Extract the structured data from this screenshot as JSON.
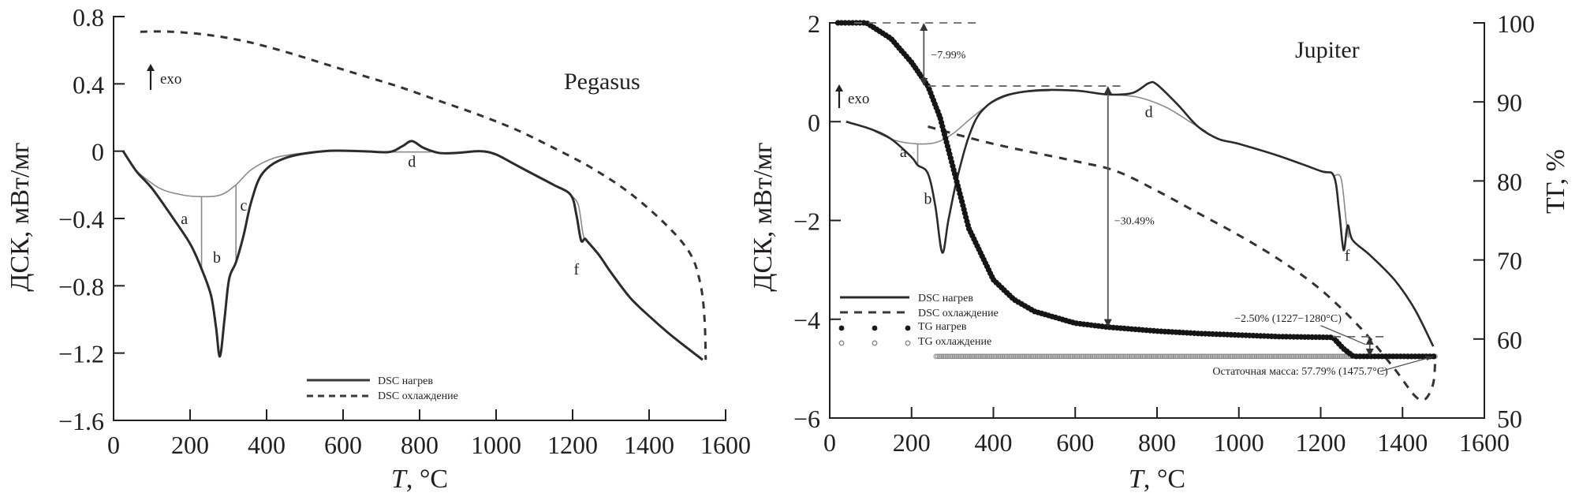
{
  "chart_data": [
    {
      "type": "line",
      "title": "Pegasus",
      "xlabel_italic": "T",
      "xlabel_rest": ", °C",
      "ylabel": "ДСК, мВт/мг",
      "xlim": [
        0,
        1600
      ],
      "ylim": [
        -1.6,
        0.8
      ],
      "xticks": [
        0,
        200,
        400,
        600,
        800,
        1000,
        1200,
        1400,
        1600
      ],
      "yticks": [
        -1.6,
        -1.2,
        -0.8,
        -0.4,
        0,
        0.4,
        0.8
      ],
      "ytick_labels": [
        "−1.6",
        "−1.2",
        "−0.8",
        "−0.4",
        "0",
        "0.4",
        "0.8"
      ],
      "exo_label": "exo",
      "legend": {
        "placement": "bottom-center",
        "entries": [
          "DSC нагрев",
          "DSC охлаждение"
        ]
      },
      "series": [
        {
          "name": "DSC нагрев",
          "style": "solid",
          "points": [
            [
              25,
              0
            ],
            [
              60,
              -0.12
            ],
            [
              100,
              -0.22
            ],
            [
              150,
              -0.38
            ],
            [
              200,
              -0.55
            ],
            [
              230,
              -0.7
            ],
            [
              255,
              -0.86
            ],
            [
              268,
              -1.05
            ],
            [
              278,
              -1.22
            ],
            [
              290,
              -1.0
            ],
            [
              302,
              -0.76
            ],
            [
              320,
              -0.66
            ],
            [
              340,
              -0.5
            ],
            [
              360,
              -0.3
            ],
            [
              390,
              -0.13
            ],
            [
              450,
              -0.04
            ],
            [
              550,
              0
            ],
            [
              650,
              0
            ],
            [
              720,
              -0.005
            ],
            [
              755,
              0.03
            ],
            [
              780,
              0.06
            ],
            [
              810,
              0.02
            ],
            [
              850,
              -0.01
            ],
            [
              900,
              -0.01
            ],
            [
              960,
              0
            ],
            [
              1000,
              -0.02
            ],
            [
              1050,
              -0.08
            ],
            [
              1100,
              -0.14
            ],
            [
              1150,
              -0.2
            ],
            [
              1195,
              -0.26
            ],
            [
              1210,
              -0.38
            ],
            [
              1222,
              -0.53
            ],
            [
              1232,
              -0.52
            ],
            [
              1240,
              -0.54
            ],
            [
              1270,
              -0.62
            ],
            [
              1300,
              -0.72
            ],
            [
              1350,
              -0.87
            ],
            [
              1400,
              -0.98
            ],
            [
              1450,
              -1.08
            ],
            [
              1500,
              -1.17
            ],
            [
              1540,
              -1.24
            ]
          ]
        },
        {
          "name": "DSC охлаждение",
          "style": "dashed",
          "points": [
            [
              70,
              0.71
            ],
            [
              150,
              0.71
            ],
            [
              250,
              0.69
            ],
            [
              350,
              0.65
            ],
            [
              450,
              0.59
            ],
            [
              550,
              0.52
            ],
            [
              650,
              0.45
            ],
            [
              750,
              0.38
            ],
            [
              850,
              0.3
            ],
            [
              950,
              0.22
            ],
            [
              1050,
              0.13
            ],
            [
              1150,
              0.02
            ],
            [
              1250,
              -0.1
            ],
            [
              1350,
              -0.25
            ],
            [
              1450,
              -0.45
            ],
            [
              1510,
              -0.62
            ],
            [
              1535,
              -0.8
            ],
            [
              1545,
              -1.0
            ],
            [
              1548,
              -1.24
            ]
          ]
        }
      ],
      "baselines": [
        {
          "points": [
            [
              60,
              -0.12
            ],
            [
              120,
              -0.22
            ],
            [
              180,
              -0.26
            ],
            [
              230,
              -0.27
            ],
            [
              280,
              -0.26
            ],
            [
              320,
              -0.2
            ],
            [
              360,
              -0.11
            ],
            [
              420,
              -0.04
            ],
            [
              500,
              -0.01
            ],
            [
              550,
              0
            ]
          ]
        },
        {
          "points": [
            [
              720,
              -0.005
            ],
            [
              830,
              -0.005
            ]
          ]
        },
        {
          "points": [
            [
              1195,
              -0.26
            ],
            [
              1215,
              -0.32
            ],
            [
              1228,
              -0.5
            ],
            [
              1240,
              -0.54
            ]
          ]
        }
      ],
      "dividers": [
        [
          230,
          -0.27,
          -0.7
        ],
        [
          320,
          -0.2,
          -0.66
        ]
      ],
      "peak_labels": [
        {
          "text": "a",
          "x": 185,
          "y": -0.4
        },
        {
          "text": "b",
          "x": 270,
          "y": -0.63
        },
        {
          "text": "c",
          "x": 340,
          "y": -0.32
        },
        {
          "text": "d",
          "x": 780,
          "y": -0.06
        },
        {
          "text": "f",
          "x": 1210,
          "y": -0.7
        }
      ]
    },
    {
      "type": "line",
      "title": "Jupiter",
      "xlabel_italic": "T",
      "xlabel_rest": ", °C",
      "ylabel": "ДСК, мВт/мг",
      "ylabel_right": "ТГ, %",
      "xlim": [
        0,
        1600
      ],
      "ylim": [
        -6,
        2
      ],
      "ylim_right": [
        50,
        100
      ],
      "xticks": [
        0,
        200,
        400,
        600,
        800,
        1000,
        1200,
        1400,
        1600
      ],
      "yticks": [
        -6,
        -4,
        -2,
        0,
        2
      ],
      "ytick_labels": [
        "−6",
        "−4",
        "−2",
        "0",
        "2"
      ],
      "yticks_right": [
        50,
        60,
        70,
        80,
        90,
        100
      ],
      "exo_label": "exo",
      "legend": {
        "placement": "lower-left",
        "entries": [
          "DSC нагрев",
          "DSC охлаждение",
          "TG нагрев",
          "TG охлаждение"
        ]
      },
      "series": [
        {
          "name": "DSC нагрев",
          "style": "solid",
          "axis": "left",
          "points": [
            [
              40,
              0
            ],
            [
              100,
              -0.15
            ],
            [
              150,
              -0.35
            ],
            [
              200,
              -0.72
            ],
            [
              215,
              -0.88
            ],
            [
              240,
              -1.05
            ],
            [
              258,
              -1.7
            ],
            [
              275,
              -2.65
            ],
            [
              290,
              -2.0
            ],
            [
              310,
              -1.2
            ],
            [
              340,
              -0.3
            ],
            [
              370,
              0.2
            ],
            [
              420,
              0.5
            ],
            [
              500,
              0.63
            ],
            [
              600,
              0.63
            ],
            [
              680,
              0.55
            ],
            [
              740,
              0.58
            ],
            [
              780,
              0.78
            ],
            [
              800,
              0.75
            ],
            [
              850,
              0.35
            ],
            [
              900,
              -0.1
            ],
            [
              950,
              -0.35
            ],
            [
              1000,
              -0.45
            ],
            [
              1100,
              -0.7
            ],
            [
              1200,
              -1.0
            ],
            [
              1232,
              -1.1
            ],
            [
              1245,
              -1.8
            ],
            [
              1256,
              -2.6
            ],
            [
              1266,
              -2.1
            ],
            [
              1278,
              -2.4
            ],
            [
              1320,
              -2.7
            ],
            [
              1380,
              -3.2
            ],
            [
              1430,
              -3.8
            ],
            [
              1475,
              -4.55
            ]
          ]
        },
        {
          "name": "DSC охлаждение",
          "style": "dashed",
          "axis": "left",
          "points": [
            [
              240,
              -0.1
            ],
            [
              400,
              -0.45
            ],
            [
              600,
              -0.8
            ],
            [
              700,
              -1.0
            ],
            [
              800,
              -1.4
            ],
            [
              900,
              -1.85
            ],
            [
              1000,
              -2.3
            ],
            [
              1100,
              -2.8
            ],
            [
              1200,
              -3.4
            ],
            [
              1300,
              -4.2
            ],
            [
              1380,
              -5.0
            ],
            [
              1430,
              -5.55
            ],
            [
              1455,
              -5.62
            ],
            [
              1475,
              -5.3
            ],
            [
              1480,
              -4.8
            ]
          ]
        },
        {
          "name": "TG нагрев",
          "style": "filled-dots",
          "axis": "right",
          "points": [
            [
              20,
              100
            ],
            [
              90,
              100
            ],
            [
              150,
              98
            ],
            [
              200,
              95
            ],
            [
              240,
              92
            ],
            [
              270,
              88
            ],
            [
              300,
              82
            ],
            [
              340,
              74
            ],
            [
              400,
              67.5
            ],
            [
              450,
              65
            ],
            [
              500,
              63.5
            ],
            [
              600,
              62
            ],
            [
              680,
              61.5
            ],
            [
              800,
              61
            ],
            [
              900,
              60.7
            ],
            [
              1000,
              60.5
            ],
            [
              1100,
              60.3
            ],
            [
              1230,
              60.2
            ],
            [
              1255,
              58.8
            ],
            [
              1280,
              57.8
            ],
            [
              1400,
              57.8
            ],
            [
              1476,
              57.79
            ]
          ]
        },
        {
          "name": "TG охлаждение",
          "style": "open-dots",
          "axis": "right",
          "points": [
            [
              260,
              57.8
            ],
            [
              600,
              57.8
            ],
            [
              1000,
              57.8
            ],
            [
              1300,
              57.8
            ],
            [
              1480,
              57.8
            ]
          ]
        }
      ],
      "baselines": [
        {
          "points": [
            [
              110,
              -0.2
            ],
            [
              160,
              -0.38
            ],
            [
              215,
              -0.45
            ],
            [
              260,
              -0.42
            ],
            [
              300,
              -0.25
            ],
            [
              350,
              0.1
            ],
            [
              400,
              0.4
            ],
            [
              460,
              0.58
            ],
            [
              540,
              0.63
            ]
          ]
        },
        {
          "points": [
            [
              680,
              0.55
            ],
            [
              750,
              0.5
            ],
            [
              820,
              0.3
            ],
            [
              880,
              0.0
            ],
            [
              920,
              -0.2
            ]
          ]
        },
        {
          "points": [
            [
              1232,
              -1.1
            ],
            [
              1250,
              -1.15
            ],
            [
              1262,
              -2.0
            ],
            [
              1268,
              -2.35
            ]
          ]
        }
      ],
      "dividers": [
        [
          215,
          -0.45,
          -0.88
        ]
      ],
      "peak_labels": [
        {
          "text": "a",
          "x": 180,
          "y": -0.6
        },
        {
          "text": "b",
          "x": 240,
          "y": -1.55
        },
        {
          "text": "d",
          "x": 780,
          "y": 0.2
        },
        {
          "text": "f",
          "x": 1265,
          "y": -2.7
        }
      ],
      "annotations": [
        {
          "text": "−7.99%",
          "from_tg": 100,
          "to_tg": 92.01,
          "x": 230
        },
        {
          "text": "−30.49%",
          "from_tg": 92.01,
          "to_tg": 61.52,
          "x": 680
        },
        {
          "text": "−2.50% (1227−1280°C)",
          "from_tg": 60.29,
          "to_tg": 57.79,
          "x": 1320
        },
        {
          "text": "Остаточная масса: 57.79% (1475.7°C)",
          "point_x": 1475.7,
          "point_tg": 57.79
        }
      ]
    }
  ]
}
